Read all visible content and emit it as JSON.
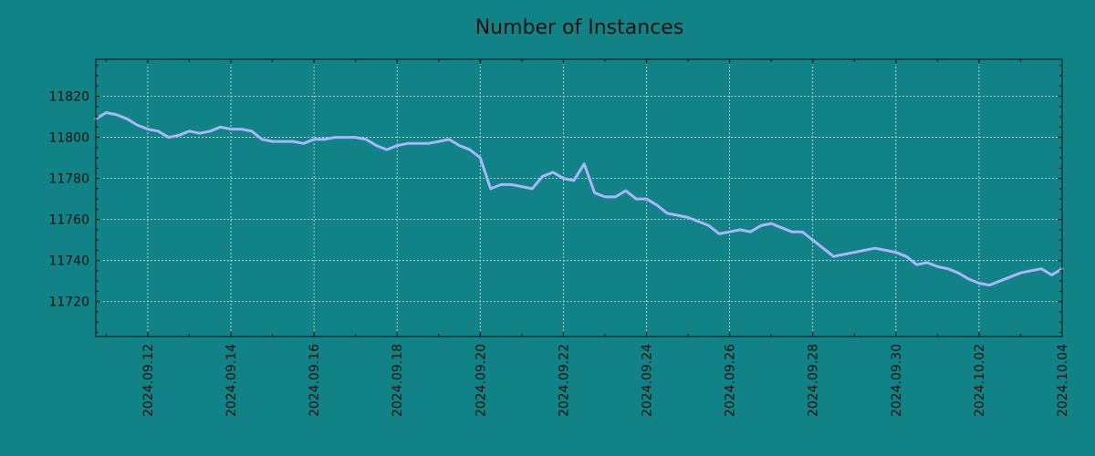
{
  "colors": {
    "background": "#118387",
    "line": "#a9b6fb",
    "axis": "#111111",
    "grid": "#cfe4e4"
  },
  "chart_data": {
    "type": "line",
    "title": "Number of Instances",
    "xlabel": "",
    "ylabel": "",
    "grid": true,
    "x_tick_labels": [
      "2024.09.12",
      "2024.09.14",
      "2024.09.16",
      "2024.09.18",
      "2024.09.20",
      "2024.09.22",
      "2024.09.24",
      "2024.09.26",
      "2024.09.28",
      "2024.09.30",
      "2024.10.02",
      "2024.10.04"
    ],
    "y_ticks": [
      11720,
      11740,
      11760,
      11780,
      11800,
      11820
    ],
    "xlim": [
      "2024.09.10 18:00",
      "2024.10.04"
    ],
    "ylim": [
      11703,
      11838
    ],
    "series": [
      {
        "name": "",
        "x": [
          "2024.09.10 18:00",
          "2024.09.11 00:00",
          "2024.09.11 06:00",
          "2024.09.11 12:00",
          "2024.09.11 18:00",
          "2024.09.12 00:00",
          "2024.09.12 06:00",
          "2024.09.12 12:00",
          "2024.09.12 18:00",
          "2024.09.13 00:00",
          "2024.09.13 06:00",
          "2024.09.13 12:00",
          "2024.09.13 18:00",
          "2024.09.14 00:00",
          "2024.09.14 06:00",
          "2024.09.14 12:00",
          "2024.09.14 18:00",
          "2024.09.15 00:00",
          "2024.09.15 06:00",
          "2024.09.15 12:00",
          "2024.09.15 18:00",
          "2024.09.16 00:00",
          "2024.09.16 06:00",
          "2024.09.16 12:00",
          "2024.09.16 18:00",
          "2024.09.17 00:00",
          "2024.09.17 06:00",
          "2024.09.17 12:00",
          "2024.09.17 18:00",
          "2024.09.18 00:00",
          "2024.09.18 06:00",
          "2024.09.18 12:00",
          "2024.09.18 18:00",
          "2024.09.19 00:00",
          "2024.09.19 06:00",
          "2024.09.19 12:00",
          "2024.09.19 18:00",
          "2024.09.20 00:00",
          "2024.09.20 06:00",
          "2024.09.20 12:00",
          "2024.09.20 18:00",
          "2024.09.21 00:00",
          "2024.09.21 06:00",
          "2024.09.21 12:00",
          "2024.09.21 18:00",
          "2024.09.22 00:00",
          "2024.09.22 06:00",
          "2024.09.22 12:00",
          "2024.09.22 18:00",
          "2024.09.23 00:00",
          "2024.09.23 06:00",
          "2024.09.23 12:00",
          "2024.09.23 18:00",
          "2024.09.24 00:00",
          "2024.09.24 06:00",
          "2024.09.24 12:00",
          "2024.09.24 18:00",
          "2024.09.25 00:00",
          "2024.09.25 06:00",
          "2024.09.25 12:00",
          "2024.09.25 18:00",
          "2024.09.26 00:00",
          "2024.09.26 06:00",
          "2024.09.26 12:00",
          "2024.09.26 18:00",
          "2024.09.27 00:00",
          "2024.09.27 06:00",
          "2024.09.27 12:00",
          "2024.09.27 18:00",
          "2024.09.28 00:00",
          "2024.09.28 06:00",
          "2024.09.28 12:00",
          "2024.09.28 18:00",
          "2024.09.29 00:00",
          "2024.09.29 06:00",
          "2024.09.29 12:00",
          "2024.09.29 18:00",
          "2024.09.30 00:00",
          "2024.09.30 06:00",
          "2024.09.30 12:00",
          "2024.09.30 18:00",
          "2024.10.01 00:00",
          "2024.10.01 06:00",
          "2024.10.01 12:00",
          "2024.10.01 18:00",
          "2024.10.02 00:00",
          "2024.10.02 06:00",
          "2024.10.02 12:00",
          "2024.10.02 18:00",
          "2024.10.03 00:00",
          "2024.10.03 06:00",
          "2024.10.03 12:00",
          "2024.10.03 18:00",
          "2024.10.04 00:00"
        ],
        "values": [
          11809,
          11812,
          11811,
          11809,
          11806,
          11804,
          11803,
          11800,
          11801,
          11803,
          11802,
          11803,
          11805,
          11804,
          11804,
          11803,
          11799,
          11798,
          11798,
          11798,
          11797,
          11799,
          11799,
          11800,
          11800,
          11800,
          11799,
          11796,
          11794,
          11796,
          11797,
          11797,
          11797,
          11798,
          11799,
          11796,
          11794,
          11790,
          11775,
          11777,
          11777,
          11776,
          11775,
          11781,
          11783,
          11780,
          11779,
          11787,
          11773,
          11771,
          11771,
          11774,
          11770,
          11770,
          11767,
          11763,
          11762,
          11761,
          11759,
          11757,
          11753,
          11754,
          11755,
          11754,
          11757,
          11758,
          11756,
          11754,
          11754,
          11750,
          11746,
          11742,
          11743,
          11744,
          11745,
          11746,
          11745,
          11744,
          11742,
          11738,
          11739,
          11737,
          11736,
          11734,
          11731,
          11729,
          11728,
          11730,
          11732,
          11734,
          11735,
          11736,
          11733,
          11736
        ]
      }
    ]
  }
}
